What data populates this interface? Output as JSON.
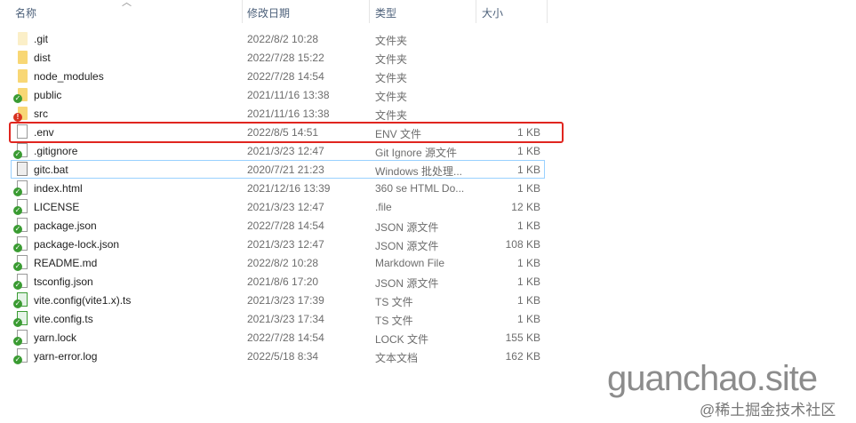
{
  "header": {
    "name": "名称",
    "date": "修改日期",
    "type": "类型",
    "size": "大小",
    "sort_icon": "chevron-up-icon"
  },
  "files": [
    {
      "name": ".git",
      "date": "2022/8/2 10:28",
      "type": "文件夹",
      "size": "",
      "icon": "folder-hidden"
    },
    {
      "name": "dist",
      "date": "2022/7/28 15:22",
      "type": "文件夹",
      "size": "",
      "icon": "folder"
    },
    {
      "name": "node_modules",
      "date": "2022/7/28 14:54",
      "type": "文件夹",
      "size": "",
      "icon": "folder"
    },
    {
      "name": "public",
      "date": "2021/11/16 13:38",
      "type": "文件夹",
      "size": "",
      "icon": "folder-check"
    },
    {
      "name": "src",
      "date": "2021/11/16 13:38",
      "type": "文件夹",
      "size": "",
      "icon": "folder-error"
    },
    {
      "name": ".env",
      "date": "2022/8/5 14:51",
      "type": "ENV 文件",
      "size": "1 KB",
      "icon": "file"
    },
    {
      "name": ".gitignore",
      "date": "2021/3/23 12:47",
      "type": "Git Ignore 源文件",
      "size": "1 KB",
      "icon": "file-check"
    },
    {
      "name": "gitc.bat",
      "date": "2020/7/21 21:23",
      "type": "Windows 批处理...",
      "size": "1 KB",
      "icon": "bat-file"
    },
    {
      "name": "index.html",
      "date": "2021/12/16 13:39",
      "type": "360 se HTML Do...",
      "size": "1 KB",
      "icon": "file-check"
    },
    {
      "name": "LICENSE",
      "date": "2021/3/23 12:47",
      "type": ".file",
      "size": "12 KB",
      "icon": "file-check"
    },
    {
      "name": "package.json",
      "date": "2022/7/28 14:54",
      "type": "JSON 源文件",
      "size": "1 KB",
      "icon": "file-check"
    },
    {
      "name": "package-lock.json",
      "date": "2021/3/23 12:47",
      "type": "JSON 源文件",
      "size": "108 KB",
      "icon": "file-check"
    },
    {
      "name": "README.md",
      "date": "2022/8/2 10:28",
      "type": "Markdown File",
      "size": "1 KB",
      "icon": "file-check"
    },
    {
      "name": "tsconfig.json",
      "date": "2021/8/6 17:20",
      "type": "JSON 源文件",
      "size": "1 KB",
      "icon": "file-check"
    },
    {
      "name": "vite.config(vite1.x).ts",
      "date": "2021/3/23 17:39",
      "type": "TS 文件",
      "size": "1 KB",
      "icon": "ts-file-check"
    },
    {
      "name": "vite.config.ts",
      "date": "2021/3/23 17:34",
      "type": "TS 文件",
      "size": "1 KB",
      "icon": "ts-file-check"
    },
    {
      "name": "yarn.lock",
      "date": "2022/7/28 14:54",
      "type": "LOCK 文件",
      "size": "155 KB",
      "icon": "file-check"
    },
    {
      "name": "yarn-error.log",
      "date": "2022/5/18 8:34",
      "type": "文本文档",
      "size": "162 KB",
      "icon": "file-check"
    }
  ],
  "highlight_color": "#e0251f",
  "watermark": {
    "site": "guanchao.site",
    "community": "@稀土掘金技术社区"
  }
}
